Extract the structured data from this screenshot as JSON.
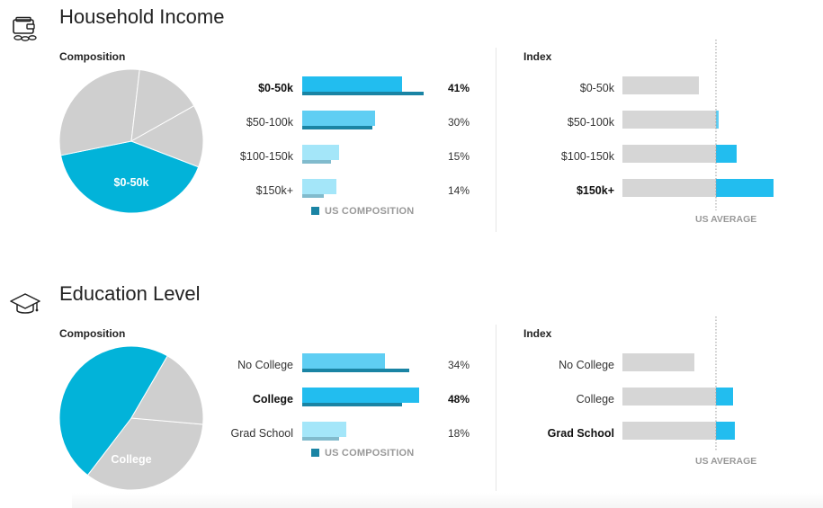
{
  "colors": {
    "primary": "#22bdef",
    "mid": "#5fcef3",
    "light": "#a4e6f9",
    "us": "#1a84a4",
    "gray": "#d6d6d6",
    "pie_highlight": "#02b3d9",
    "pie_gray": "#cfcfcf"
  },
  "icons": {
    "income": "wallet-coins-icon",
    "education": "graduation-cap-icon"
  },
  "sections": [
    {
      "title": "Household Income",
      "composition_label": "Composition",
      "index_label": "Index",
      "legend_label": "US COMPOSITION",
      "us_average_label": "US AVERAGE",
      "pie_label": "$0-50k",
      "rows": [
        {
          "label": "$0-50k",
          "pct": "41%",
          "bold": true
        },
        {
          "label": "$50-100k",
          "pct": "30%",
          "bold": false
        },
        {
          "label": "$100-150k",
          "pct": "15%",
          "bold": false
        },
        {
          "label": "$150k+",
          "pct": "14%",
          "bold": false
        }
      ],
      "index_rows": [
        {
          "label": "$0-50k",
          "bold": false
        },
        {
          "label": "$50-100k",
          "bold": false
        },
        {
          "label": "$100-150k",
          "bold": false
        },
        {
          "label": "$150k+",
          "bold": true
        }
      ]
    },
    {
      "title": "Education Level",
      "composition_label": "Composition",
      "index_label": "Index",
      "legend_label": "US COMPOSITION",
      "us_average_label": "US AVERAGE",
      "pie_label": "College",
      "rows": [
        {
          "label": "No College",
          "pct": "34%",
          "bold": false
        },
        {
          "label": "College",
          "pct": "48%",
          "bold": true
        },
        {
          "label": "Grad School",
          "pct": "18%",
          "bold": false
        }
      ],
      "index_rows": [
        {
          "label": "No College",
          "bold": false
        },
        {
          "label": "College",
          "bold": false
        },
        {
          "label": "Grad School",
          "bold": true
        }
      ]
    }
  ],
  "chart_data": [
    {
      "type": "pie",
      "title": "Household Income — Composition",
      "categories": [
        "$0-50k",
        "$50-100k",
        "$100-150k",
        "$150k+"
      ],
      "values": [
        41,
        30,
        15,
        14
      ],
      "highlight": "$0-50k"
    },
    {
      "type": "bar",
      "title": "Household Income — Composition",
      "categories": [
        "$0-50k",
        "$50-100k",
        "$100-150k",
        "$150k+"
      ],
      "series": [
        {
          "name": "Composition",
          "values": [
            41,
            30,
            15,
            14
          ]
        },
        {
          "name": "US COMPOSITION",
          "values": [
            50,
            29,
            12,
            9
          ]
        }
      ],
      "xlim": [
        0,
        50
      ]
    },
    {
      "type": "bar",
      "title": "Household Income — Index",
      "categories": [
        "$0-50k",
        "$50-100k",
        "$100-150k",
        "$150k+"
      ],
      "values": [
        82,
        103,
        122,
        160
      ],
      "baseline": 100,
      "xlim": [
        0,
        160
      ]
    },
    {
      "type": "pie",
      "title": "Education Level — Composition",
      "categories": [
        "No College",
        "College",
        "Grad School"
      ],
      "values": [
        34,
        48,
        18
      ],
      "highlight": "College"
    },
    {
      "type": "bar",
      "title": "Education Level — Composition",
      "categories": [
        "No College",
        "College",
        "Grad School"
      ],
      "series": [
        {
          "name": "Composition",
          "values": [
            34,
            48,
            18
          ]
        },
        {
          "name": "US COMPOSITION",
          "values": [
            44,
            41,
            15
          ]
        }
      ],
      "xlim": [
        0,
        50
      ]
    },
    {
      "type": "bar",
      "title": "Education Level — Index",
      "categories": [
        "No College",
        "College",
        "Grad School"
      ],
      "values": [
        77,
        118,
        120
      ],
      "baseline": 100,
      "xlim": [
        0,
        160
      ]
    }
  ]
}
